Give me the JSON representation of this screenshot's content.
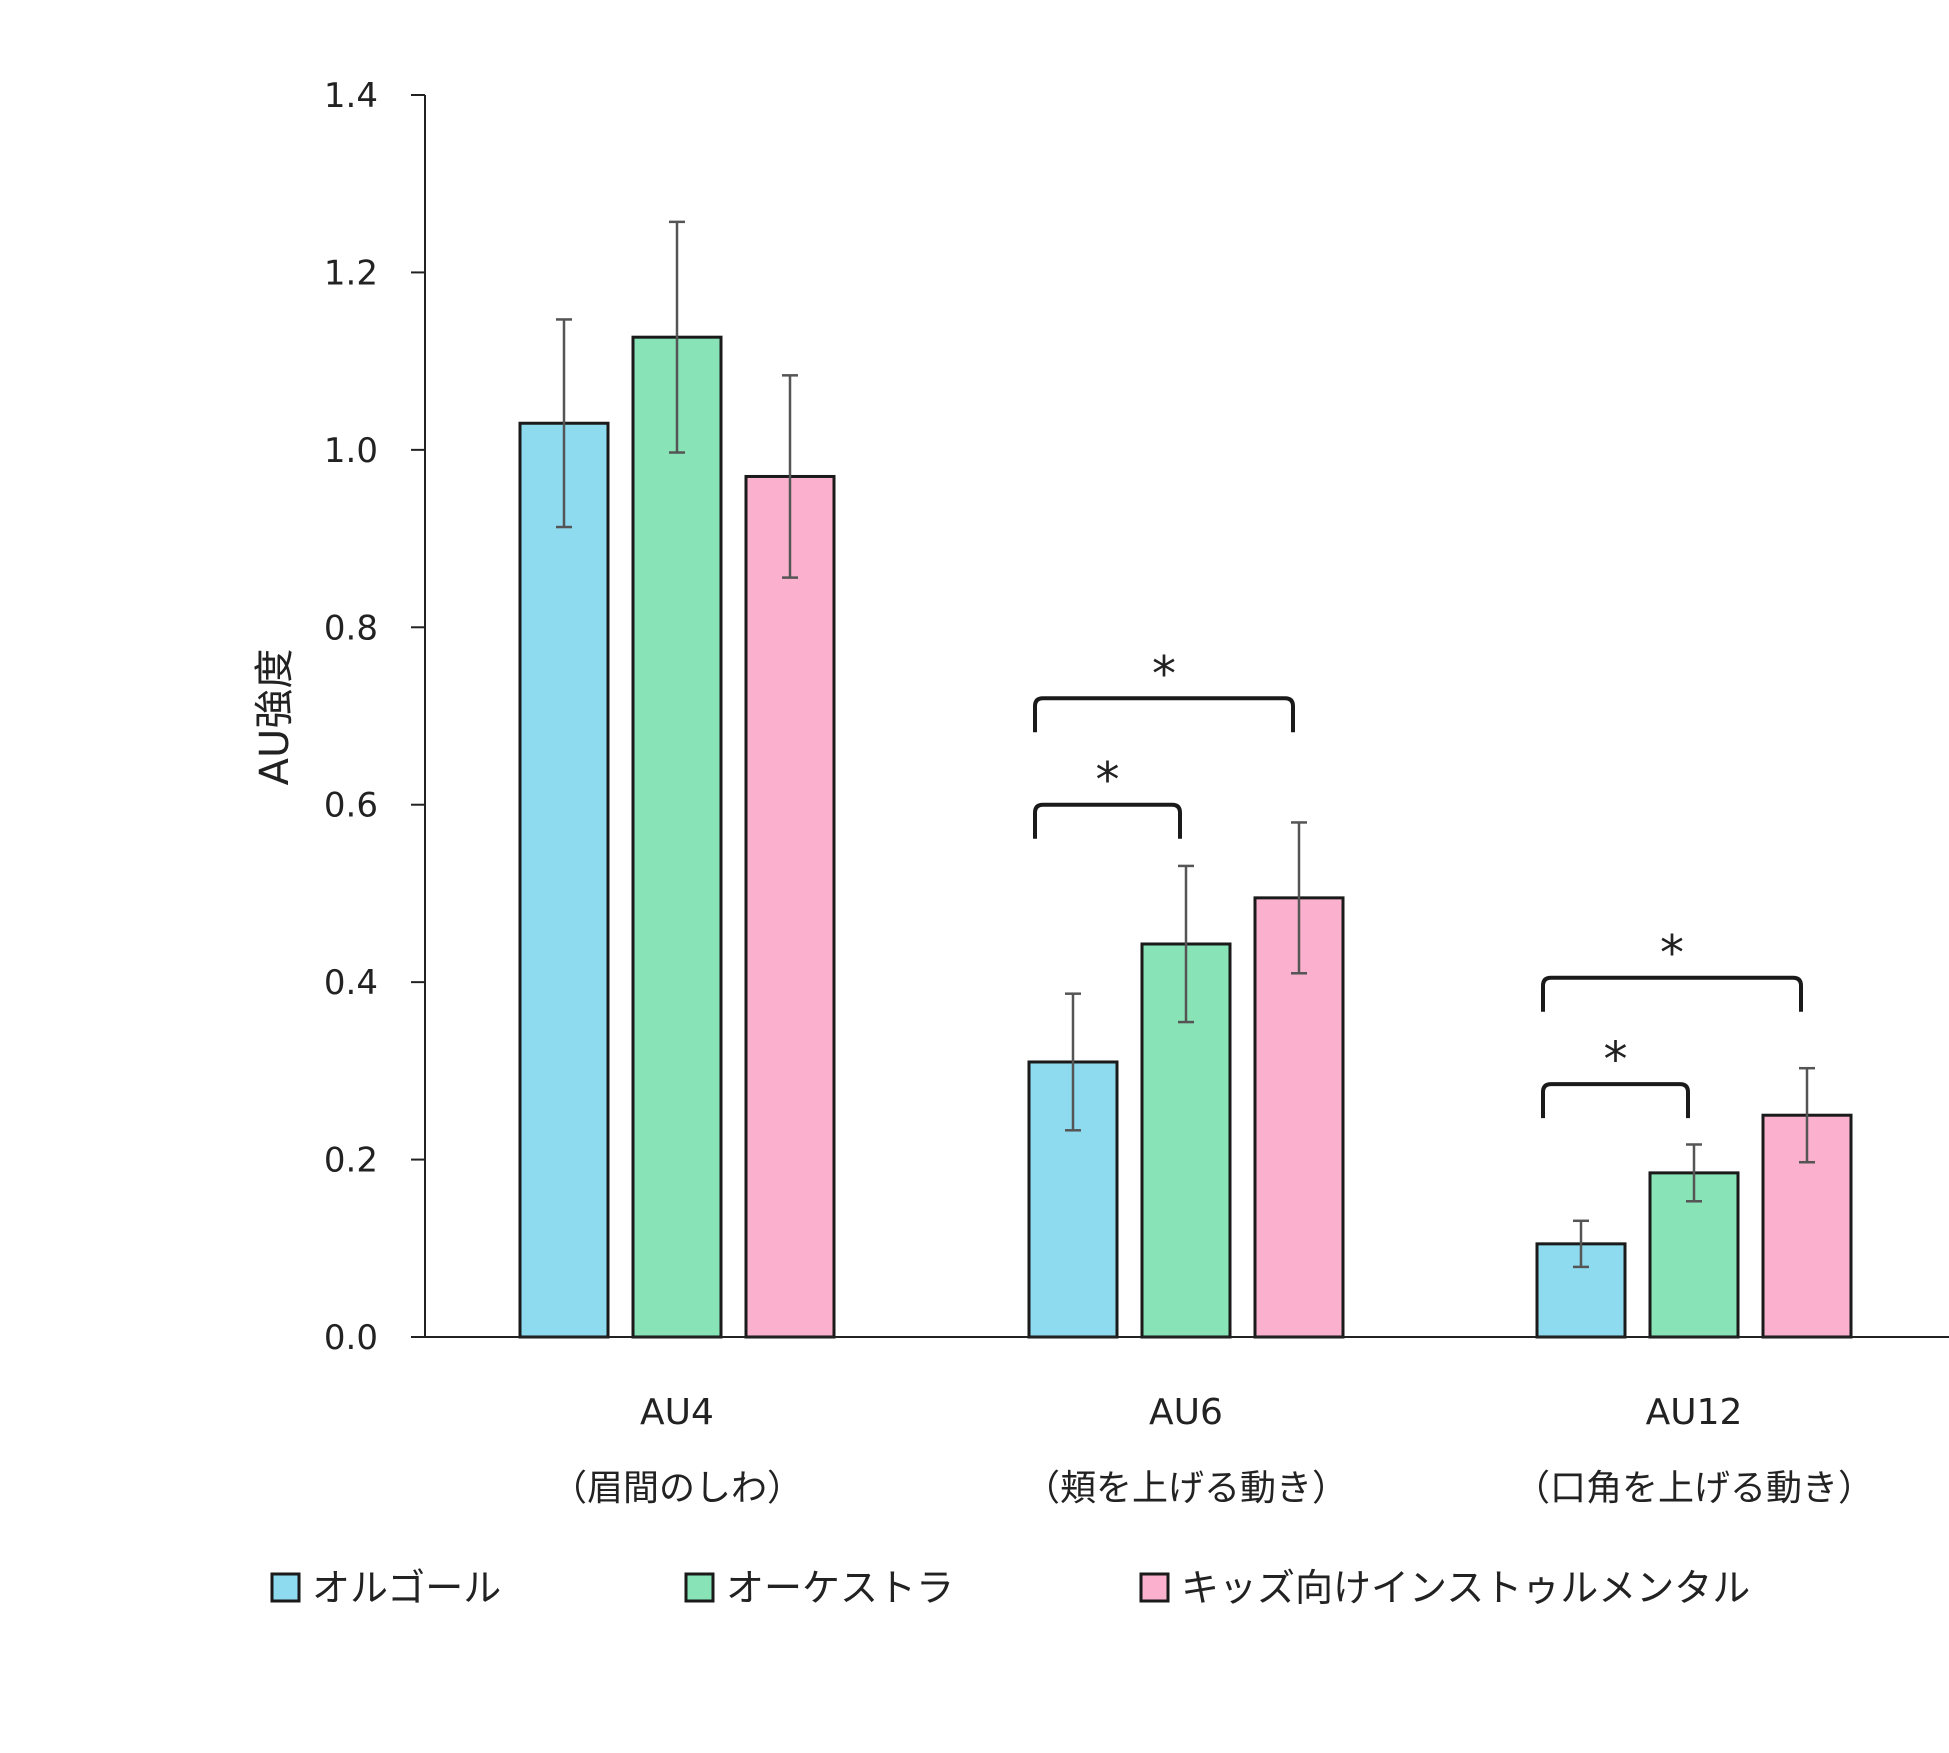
{
  "chart_data": {
    "type": "bar",
    "title": "",
    "xlabel": "",
    "ylabel": "AU強度",
    "ylim": [
      0,
      1.4
    ],
    "yticks": [
      "0.0",
      "0.2",
      "0.4",
      "0.6",
      "0.8",
      "1.0",
      "1.2",
      "1.4"
    ],
    "grid": false,
    "legend_position": "bottom",
    "categories": [
      {
        "code": "AU4",
        "desc": "（眉間のしわ）"
      },
      {
        "code": "AU6",
        "desc": "（頬を上げる動き）"
      },
      {
        "code": "AU12",
        "desc": "（口角を上げる動き）"
      }
    ],
    "series": [
      {
        "name": "オルゴール",
        "color": "#8EDBF0",
        "values": [
          1.03,
          0.31,
          0.105
        ],
        "errors": [
          0.117,
          0.077,
          0.026
        ]
      },
      {
        "name": "オーケストラ",
        "color": "#88E3B6",
        "values": [
          1.127,
          0.443,
          0.185
        ],
        "errors": [
          0.13,
          0.088,
          0.032
        ]
      },
      {
        "name": "キッズ向けインストゥルメンタル",
        "color": "#FBB1CD",
        "values": [
          0.97,
          0.495,
          0.25
        ],
        "errors": [
          0.114,
          0.085,
          0.053
        ]
      }
    ],
    "significance": [
      {
        "category": 1,
        "from": 0,
        "to": 1,
        "label": "*",
        "height": 0.6
      },
      {
        "category": 1,
        "from": 0,
        "to": 2,
        "label": "*",
        "height": 0.72
      },
      {
        "category": 2,
        "from": 0,
        "to": 1,
        "label": "*",
        "height": 0.285
      },
      {
        "category": 2,
        "from": 0,
        "to": 2,
        "label": "*",
        "height": 0.405
      }
    ]
  }
}
